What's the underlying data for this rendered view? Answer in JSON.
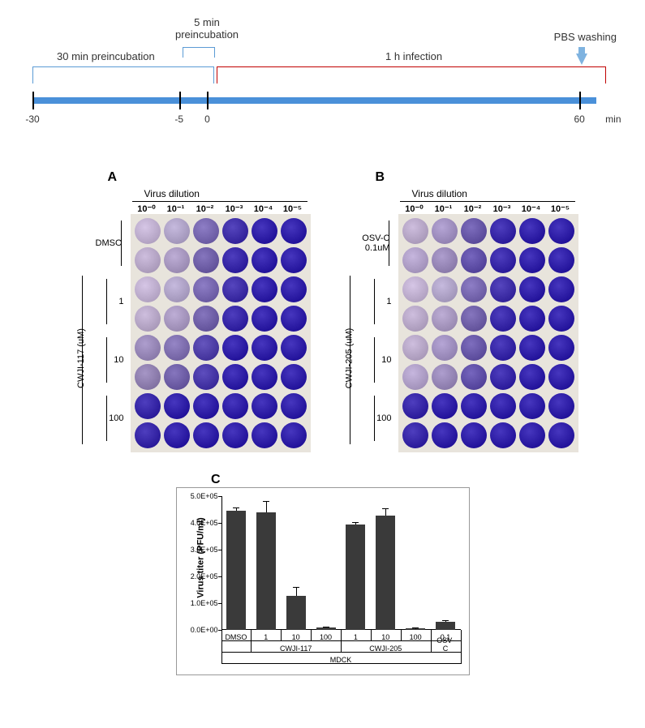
{
  "timeline": {
    "preinc_5min_label": "5 min\npreincubation",
    "preinc_30min_label": "30 min preincubation",
    "infection_label": "1 h infection",
    "pbs_label": "PBS washing",
    "ticks": [
      {
        "pos": 0,
        "label": "-30"
      },
      {
        "pos": 0.26,
        "label": "-5"
      },
      {
        "pos": 0.31,
        "label": "0"
      },
      {
        "pos": 0.97,
        "label": "60"
      }
    ],
    "axis_unit": "min",
    "bracket_color_left": "#5b9bd5",
    "bracket_color_right": "#c00000",
    "bar_color": "#4a90d9"
  },
  "plates": {
    "header": "Virus dilution",
    "dilutions": [
      "10⁻⁰",
      "10⁻¹",
      "10⁻²",
      "10⁻³",
      "10⁻⁴",
      "10⁻⁵"
    ],
    "panelA": {
      "letter": "A",
      "control_label": "DMSO",
      "compound": "CWJI-117 (uM)",
      "concentrations": [
        "1",
        "10",
        "100"
      ],
      "well_colors": [
        [
          "#b8a8c8",
          "#a89cc0",
          "#7060a8",
          "#3828a0",
          "#2818a0",
          "#2818a0"
        ],
        [
          "#b0a0c0",
          "#a090b8",
          "#6858a0",
          "#3020a0",
          "#2818a0",
          "#2818a0"
        ],
        [
          "#b8a8c8",
          "#a89cc0",
          "#7060a8",
          "#3828a0",
          "#2818a0",
          "#2818a0"
        ],
        [
          "#b0a0c0",
          "#a090b8",
          "#6858a0",
          "#3020a0",
          "#2818a0",
          "#2818a0"
        ],
        [
          "#9080b0",
          "#7868a8",
          "#4838a0",
          "#2818a0",
          "#2818a0",
          "#2818a0"
        ],
        [
          "#8878a8",
          "#6858a0",
          "#4030a0",
          "#2818a0",
          "#2818a0",
          "#2818a0"
        ],
        [
          "#3020a0",
          "#2818a0",
          "#2818a0",
          "#2818a0",
          "#2818a0",
          "#2818a0"
        ],
        [
          "#3020a0",
          "#2818a0",
          "#2818a0",
          "#2818a0",
          "#2818a0",
          "#2818a0"
        ]
      ]
    },
    "panelB": {
      "letter": "B",
      "control_label": "OSV-C\n0.1uM",
      "compound": "CWJI-205 (uM)",
      "concentrations": [
        "1",
        "10",
        "100"
      ],
      "well_colors": [
        [
          "#b0a0c0",
          "#9888b8",
          "#6050a0",
          "#3020a0",
          "#2818a0",
          "#2818a0"
        ],
        [
          "#a898c0",
          "#9080b0",
          "#5848a0",
          "#3020a0",
          "#2818a0",
          "#2818a0"
        ],
        [
          "#b8a8c8",
          "#a89cc0",
          "#7060a8",
          "#3828a0",
          "#2818a0",
          "#2818a0"
        ],
        [
          "#b0a0c0",
          "#a090b8",
          "#6858a0",
          "#3020a0",
          "#2818a0",
          "#2818a0"
        ],
        [
          "#b0a0c0",
          "#9888b8",
          "#6050a0",
          "#3020a0",
          "#2818a0",
          "#2818a0"
        ],
        [
          "#a898c0",
          "#9080b0",
          "#5848a0",
          "#3020a0",
          "#2818a0",
          "#2818a0"
        ],
        [
          "#3020a0",
          "#2818a0",
          "#2818a0",
          "#2818a0",
          "#2818a0",
          "#2818a0"
        ],
        [
          "#3020a0",
          "#2818a0",
          "#2818a0",
          "#2818a0",
          "#2818a0",
          "#2818a0"
        ]
      ]
    },
    "plate_bg": "#e8e4dc"
  },
  "chart": {
    "letter": "C",
    "ylabel": "Virus titer (PFU/ml)",
    "ymax": 500000,
    "ytick_labels": [
      "0.0E+00",
      "1.0E+05",
      "2.0E+05",
      "3.0E+05",
      "4.0E+05",
      "5.0E+05"
    ],
    "bars": [
      {
        "label": "DMSO",
        "value": 445000,
        "err": 10000
      },
      {
        "label": "1",
        "value": 440000,
        "err": 40000
      },
      {
        "label": "10",
        "value": 128000,
        "err": 30000
      },
      {
        "label": "100",
        "value": 8000,
        "err": 3000
      },
      {
        "label": "1",
        "value": 395000,
        "err": 8000
      },
      {
        "label": "10",
        "value": 428000,
        "err": 25000
      },
      {
        "label": "100",
        "value": 5000,
        "err": 2000
      },
      {
        "label": "0.1",
        "value": 30000,
        "err": 5000
      }
    ],
    "groups": [
      {
        "label": "CWJI-117",
        "span": [
          1,
          3
        ]
      },
      {
        "label": "CWJI-205",
        "span": [
          4,
          6
        ]
      },
      {
        "label": "OSV-C",
        "span": [
          7,
          7
        ]
      }
    ],
    "super_group": {
      "label": "MDCK",
      "span": [
        0,
        7
      ]
    },
    "bar_color": "#3a3a3a",
    "background": "#ffffff"
  }
}
